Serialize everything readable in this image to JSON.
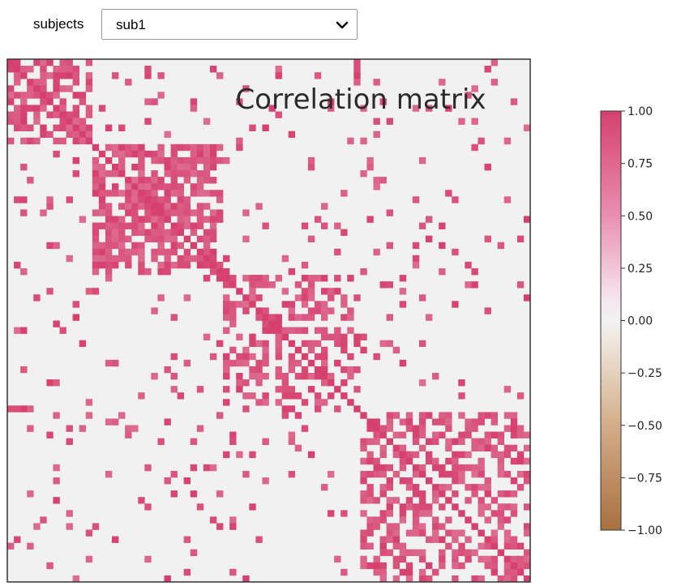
{
  "selector": {
    "label": "subjects",
    "selected": "sub1"
  },
  "colors": {
    "positive": "#d6406e",
    "neutral": "#f1f1f1",
    "negative": "#a8703f",
    "frame": "#333333"
  },
  "chart_data": {
    "type": "heatmap",
    "title": "Correlation matrix",
    "n": 80,
    "colormap": "brown-white-pink diverging",
    "colorbar": {
      "min": -1.0,
      "max": 1.0,
      "ticks": [
        1.0,
        0.75,
        0.5,
        0.25,
        0.0,
        -0.25,
        -0.5,
        -0.75,
        -1.0
      ],
      "tick_labels": [
        "1.00",
        "0.75",
        "0.50",
        "0.25",
        "0.00",
        "−0.25",
        "−0.50",
        "−0.75",
        "−1.00"
      ]
    },
    "blocks": [
      {
        "start": 0,
        "end": 13,
        "density": 0.55
      },
      {
        "start": 13,
        "end": 33,
        "density": 0.6
      },
      {
        "start": 33,
        "end": 54,
        "density": 0.45
      },
      {
        "start": 54,
        "end": 80,
        "density": 0.55
      }
    ],
    "background_density": 0.06,
    "seed": 7
  }
}
